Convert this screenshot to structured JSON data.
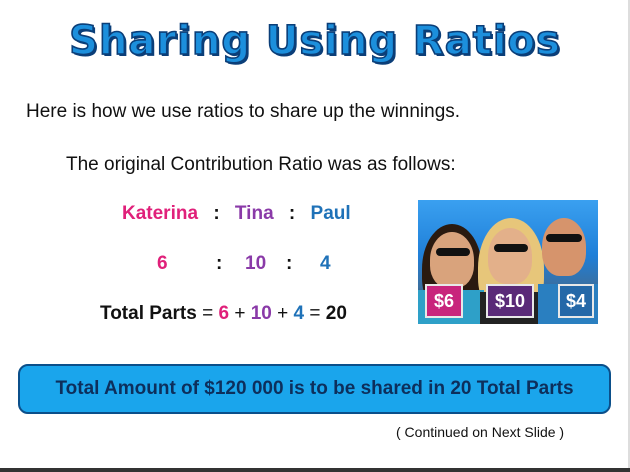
{
  "title": "Sharing Using Ratios",
  "intro": "Here is how we use ratios to share up the winnings.",
  "original_heading": "The original Contribution Ratio was as follows:",
  "ratio": {
    "names": [
      "Katerina",
      "Tina",
      "Paul"
    ],
    "separator": ":",
    "parts": [
      "6",
      "10",
      "4"
    ]
  },
  "total": {
    "label": "Total Parts",
    "eq": "=",
    "plus": "+",
    "result": "20"
  },
  "photo_tags": [
    "$6",
    "$10",
    "$4"
  ],
  "colors": {
    "katerina": "#e0207a",
    "tina": "#8a3aa8",
    "paul": "#1f72b8",
    "banner": "#1aa5ec"
  },
  "banner": "Total Amount of $120 000 is to be shared in 20 Total Parts",
  "continued": "( Continued on Next Slide )"
}
